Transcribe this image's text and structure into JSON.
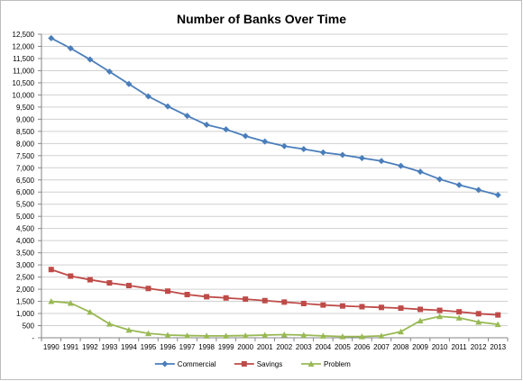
{
  "chart_data": {
    "type": "line",
    "title": "Number of Banks Over Time",
    "xlabel": "",
    "ylabel": "",
    "x": [
      "1990",
      "1991",
      "1992",
      "1993",
      "1994",
      "1995",
      "1996",
      "1997",
      "1998",
      "1999",
      "2000",
      "2001",
      "2002",
      "2003",
      "2004",
      "2005",
      "2006",
      "2007",
      "2008",
      "2009",
      "2010",
      "2011",
      "2012",
      "2013"
    ],
    "y_ticks": [
      "-",
      "500",
      "1,000",
      "1,500",
      "2,000",
      "2,500",
      "3,000",
      "3,500",
      "4,000",
      "4,500",
      "5,000",
      "5,500",
      "6,000",
      "6,500",
      "7,000",
      "7,500",
      "8,000",
      "8,500",
      "9,000",
      "9,500",
      "10,000",
      "10,500",
      "11,000",
      "11,500",
      "12,000",
      "12,500"
    ],
    "ylim": [
      0,
      12500
    ],
    "grid": true,
    "legend": "bottom",
    "series": [
      {
        "name": "Commercial",
        "color": "#4a7ebb",
        "marker": "diamond",
        "values": [
          12340,
          11920,
          11460,
          10960,
          10450,
          9940,
          9530,
          9140,
          8770,
          8580,
          8310,
          8080,
          7890,
          7770,
          7630,
          7530,
          7400,
          7280,
          7080,
          6840,
          6530,
          6290,
          6090,
          5880
        ]
      },
      {
        "name": "Savings",
        "color": "#be4b48",
        "marker": "square",
        "values": [
          2810,
          2540,
          2390,
          2260,
          2150,
          2030,
          1920,
          1780,
          1690,
          1640,
          1590,
          1530,
          1470,
          1410,
          1350,
          1310,
          1280,
          1250,
          1220,
          1170,
          1130,
          1070,
          990,
          940
        ]
      },
      {
        "name": "Problem",
        "color": "#98b954",
        "marker": "triangle",
        "values": [
          1500,
          1430,
          1060,
          570,
          320,
          180,
          110,
          90,
          80,
          80,
          90,
          110,
          130,
          110,
          80,
          50,
          50,
          80,
          250,
          700,
          880,
          820,
          650,
          550
        ]
      }
    ]
  }
}
